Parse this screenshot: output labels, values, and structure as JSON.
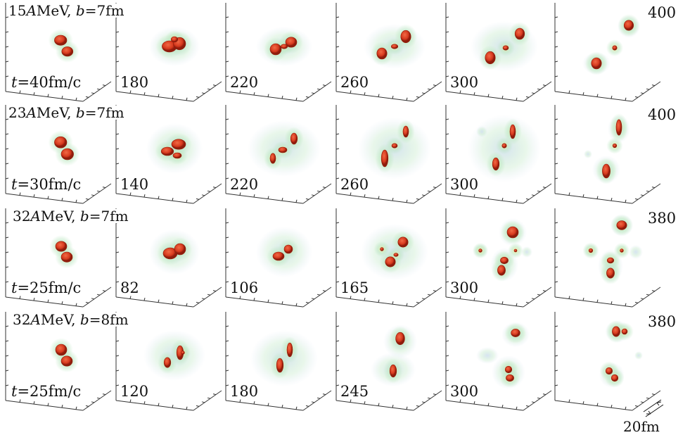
{
  "rows": [
    {
      "energy": "15",
      "energy_unit": "AMeV",
      "impact": "b=7fm",
      "t_prefix": "t",
      "times": [
        "=40fm/c",
        "180",
        "220",
        "260",
        "300",
        "400"
      ],
      "panels": [
        {
          "blobs": [
            [
              -0.12,
              -0.22,
              0.22,
              0.18
            ],
            [
              0.12,
              0.18,
              0.2,
              0.17
            ]
          ],
          "halo": 0.55,
          "haze": []
        },
        {
          "blobs": [
            [
              -0.18,
              0.0,
              0.26,
              0.2
            ],
            [
              0.18,
              -0.1,
              0.22,
              0.22
            ],
            [
              0.0,
              -0.25,
              0.12,
              0.1
            ]
          ],
          "halo": 0.8,
          "haze": [
            [
              0.0,
              0.0,
              0.9,
              0.7
            ]
          ]
        },
        {
          "blobs": [
            [
              -0.3,
              0.1,
              0.2,
              0.2
            ],
            [
              0.0,
              0.0,
              0.12,
              0.08
            ],
            [
              0.25,
              -0.15,
              0.2,
              0.18
            ]
          ],
          "halo": 0.75,
          "haze": [
            [
              0.0,
              0.0,
              1.0,
              0.7
            ]
          ]
        },
        {
          "blobs": [
            [
              -0.45,
              0.25,
              0.18,
              0.2
            ],
            [
              0.0,
              0.0,
              0.12,
              0.08
            ],
            [
              0.4,
              -0.35,
              0.18,
              0.22
            ]
          ],
          "halo": 0.75,
          "haze": [
            [
              0.0,
              0.0,
              1.1,
              0.8
            ]
          ]
        },
        {
          "blobs": [
            [
              -0.5,
              0.4,
              0.18,
              0.22
            ],
            [
              0.05,
              0.05,
              0.1,
              0.08
            ],
            [
              0.55,
              -0.45,
              0.17,
              0.2
            ]
          ],
          "halo": 0.7,
          "haze": [
            [
              0.0,
              0.0,
              1.2,
              0.9
            ]
          ]
        },
        {
          "blobs": [
            [
              -0.6,
              0.6,
              0.18,
              0.2
            ],
            [
              0.05,
              0.05,
              0.08,
              0.08
            ],
            [
              0.55,
              -0.75,
              0.17,
              0.18
            ]
          ],
          "halo": 0.7,
          "haze": [
            [
              -0.6,
              0.6,
              0.5,
              0.4
            ],
            [
              0.55,
              -0.7,
              0.4,
              0.4
            ]
          ]
        }
      ]
    },
    {
      "energy": "23",
      "energy_unit": "AMeV",
      "impact": "b=7fm",
      "t_prefix": "t",
      "times": [
        "=30fm/c",
        "140",
        "220",
        "260",
        "300",
        "400"
      ],
      "panels": [
        {
          "blobs": [
            [
              -0.12,
              -0.22,
              0.22,
              0.2
            ],
            [
              0.12,
              0.2,
              0.22,
              0.2
            ]
          ],
          "halo": 0.55,
          "haze": []
        },
        {
          "blobs": [
            [
              -0.25,
              0.1,
              0.22,
              0.15
            ],
            [
              0.15,
              -0.15,
              0.25,
              0.18
            ],
            [
              0.1,
              0.25,
              0.15,
              0.1
            ]
          ],
          "halo": 0.85,
          "haze": [
            [
              0.0,
              0.0,
              1.0,
              0.9
            ]
          ]
        },
        {
          "blobs": [
            [
              -0.4,
              0.35,
              0.1,
              0.18
            ],
            [
              -0.05,
              0.05,
              0.15,
              0.1
            ],
            [
              0.35,
              -0.35,
              0.12,
              0.2
            ]
          ],
          "halo": 0.8,
          "haze": [
            [
              0.0,
              0.0,
              1.3,
              1.0
            ]
          ]
        },
        {
          "blobs": [
            [
              -0.35,
              0.35,
              0.12,
              0.3
            ],
            [
              0.0,
              -0.1,
              0.1,
              0.08
            ],
            [
              0.4,
              -0.6,
              0.1,
              0.2
            ]
          ],
          "halo": 0.75,
          "haze": [
            [
              0.0,
              0.0,
              1.3,
              1.1
            ]
          ]
        },
        {
          "blobs": [
            [
              -0.3,
              0.55,
              0.12,
              0.22
            ],
            [
              0.0,
              -0.1,
              0.08,
              0.08
            ],
            [
              0.3,
              -0.6,
              0.1,
              0.25
            ]
          ],
          "halo": 0.7,
          "haze": [
            [
              0.0,
              0.0,
              1.3,
              1.2
            ],
            [
              -0.8,
              -0.6,
              0.2,
              0.2
            ]
          ]
        },
        {
          "blobs": [
            [
              -0.25,
              0.8,
              0.14,
              0.25
            ],
            [
              0.05,
              -0.1,
              0.07,
              0.07
            ],
            [
              0.2,
              -0.75,
              0.1,
              0.28
            ]
          ],
          "halo": 0.65,
          "haze": [
            [
              -0.25,
              0.75,
              0.5,
              0.5
            ],
            [
              0.2,
              -0.7,
              0.4,
              0.5
            ],
            [
              -0.9,
              0.2,
              0.15,
              0.15
            ]
          ]
        }
      ]
    },
    {
      "energy": "32",
      "energy_unit": "AMeV",
      "impact": "b=7fm",
      "t_prefix": "t",
      "times": [
        "=25fm/c",
        "82",
        "106",
        "165",
        "300",
        "380"
      ],
      "panels": [
        {
          "blobs": [
            [
              -0.1,
              -0.2,
              0.2,
              0.18
            ],
            [
              0.1,
              0.18,
              0.2,
              0.18
            ]
          ],
          "halo": 0.55,
          "haze": []
        },
        {
          "blobs": [
            [
              -0.15,
              0.05,
              0.25,
              0.2
            ],
            [
              0.2,
              -0.1,
              0.2,
              0.2
            ]
          ],
          "halo": 0.8,
          "haze": [
            [
              0.0,
              0.0,
              0.9,
              0.8
            ]
          ]
        },
        {
          "blobs": [
            [
              -0.2,
              0.15,
              0.2,
              0.15
            ],
            [
              0.15,
              -0.1,
              0.15,
              0.15
            ]
          ],
          "halo": 0.85,
          "haze": [
            [
              0.0,
              0.0,
              1.0,
              0.9
            ]
          ]
        },
        {
          "blobs": [
            [
              0.3,
              -0.35,
              0.18,
              0.18
            ],
            [
              -0.15,
              0.35,
              0.18,
              0.18
            ],
            [
              -0.45,
              -0.1,
              0.06,
              0.06
            ],
            [
              0.05,
              0.1,
              0.08,
              0.06
            ]
          ],
          "halo": 0.85,
          "haze": [
            [
              0.0,
              0.0,
              1.2,
              1.0
            ]
          ]
        },
        {
          "blobs": [
            [
              0.3,
              -0.7,
              0.2,
              0.2
            ],
            [
              0.0,
              0.3,
              0.14,
              0.12
            ],
            [
              -0.1,
              0.65,
              0.14,
              0.18
            ],
            [
              -0.85,
              -0.05,
              0.06,
              0.06
            ],
            [
              0.4,
              -0.05,
              0.05,
              0.05
            ]
          ],
          "halo": 0.7,
          "haze": [
            [
              0.3,
              -0.7,
              0.5,
              0.5
            ],
            [
              0.0,
              0.45,
              0.5,
              0.6
            ],
            [
              -0.85,
              -0.05,
              0.25,
              0.25
            ],
            [
              0.8,
              0.0,
              0.2,
              0.2
            ]
          ]
        },
        {
          "blobs": [
            [
              0.3,
              -0.95,
              0.18,
              0.16
            ],
            [
              -0.1,
              0.3,
              0.12,
              0.1
            ],
            [
              -0.1,
              0.75,
              0.14,
              0.18
            ],
            [
              -0.8,
              -0.05,
              0.07,
              0.07
            ],
            [
              0.3,
              -0.05,
              0.06,
              0.06
            ],
            [
              0.75,
              0.0,
              0.0,
              0.0
            ]
          ],
          "halo": 0.7,
          "haze": [
            [
              0.3,
              -0.95,
              0.4,
              0.4
            ],
            [
              -0.1,
              0.5,
              0.45,
              0.6
            ],
            [
              -0.8,
              -0.05,
              0.25,
              0.25
            ],
            [
              0.8,
              0.0,
              0.25,
              0.25
            ],
            [
              0.3,
              -0.05,
              0.2,
              0.2
            ]
          ]
        }
      ]
    },
    {
      "energy": "32",
      "energy_unit": "AMeV",
      "impact": "b=8fm",
      "t_prefix": "t",
      "times": [
        "=25fm/c",
        "120",
        "180",
        "245",
        "300",
        "380"
      ],
      "panels": [
        {
          "blobs": [
            [
              -0.1,
              -0.2,
              0.2,
              0.2
            ],
            [
              0.1,
              0.2,
              0.2,
              0.18
            ]
          ],
          "halo": 0.55,
          "haze": []
        },
        {
          "blobs": [
            [
              0.2,
              -0.1,
              0.12,
              0.25
            ],
            [
              -0.25,
              0.25,
              0.12,
              0.18
            ],
            [
              0.3,
              -0.1,
              0.06,
              0.06
            ]
          ],
          "halo": 0.85,
          "haze": [
            [
              0.0,
              0.0,
              1.1,
              0.9
            ]
          ]
        },
        {
          "blobs": [
            [
              0.2,
              -0.2,
              0.1,
              0.25
            ],
            [
              -0.15,
              0.35,
              0.12,
              0.25
            ]
          ],
          "halo": 0.85,
          "haze": [
            [
              0.0,
              0.1,
              1.2,
              1.0
            ]
          ]
        },
        {
          "blobs": [
            [
              0.2,
              -0.6,
              0.16,
              0.22
            ],
            [
              -0.05,
              0.55,
              0.12,
              0.22
            ]
          ],
          "halo": 0.8,
          "haze": [
            [
              0.2,
              -0.5,
              0.6,
              0.6
            ],
            [
              -0.05,
              0.5,
              0.8,
              0.6
            ]
          ]
        },
        {
          "blobs": [
            [
              0.4,
              -0.8,
              0.16,
              0.14
            ],
            [
              0.15,
              0.5,
              0.12,
              0.12
            ],
            [
              0.2,
              0.8,
              0.14,
              0.12
            ]
          ],
          "halo": 0.7,
          "haze": [
            [
              0.4,
              -0.75,
              0.5,
              0.45
            ],
            [
              0.15,
              0.6,
              0.6,
              0.6
            ],
            [
              -0.6,
              0.0,
              0.4,
              0.3
            ]
          ]
        },
        {
          "blobs": [
            [
              0.1,
              -0.85,
              0.14,
              0.18
            ],
            [
              0.4,
              -0.85,
              0.1,
              0.1
            ],
            [
              -0.15,
              0.55,
              0.12,
              0.12
            ],
            [
              0.05,
              0.8,
              0.12,
              0.12
            ]
          ],
          "halo": 0.7,
          "haze": [
            [
              0.15,
              -0.85,
              0.45,
              0.4
            ],
            [
              -0.05,
              0.7,
              0.45,
              0.45
            ],
            [
              0.9,
              0.0,
              0.15,
              0.15
            ]
          ]
        }
      ]
    }
  ],
  "scale_label": "20fm",
  "colors": {
    "core": "#d73a1e",
    "core_dark": "#8f1c0c",
    "halo_inner": "#f2ee9a",
    "halo_outer": "#bfe8c4",
    "haze": "#c9d9ef",
    "axis": "#333333"
  }
}
